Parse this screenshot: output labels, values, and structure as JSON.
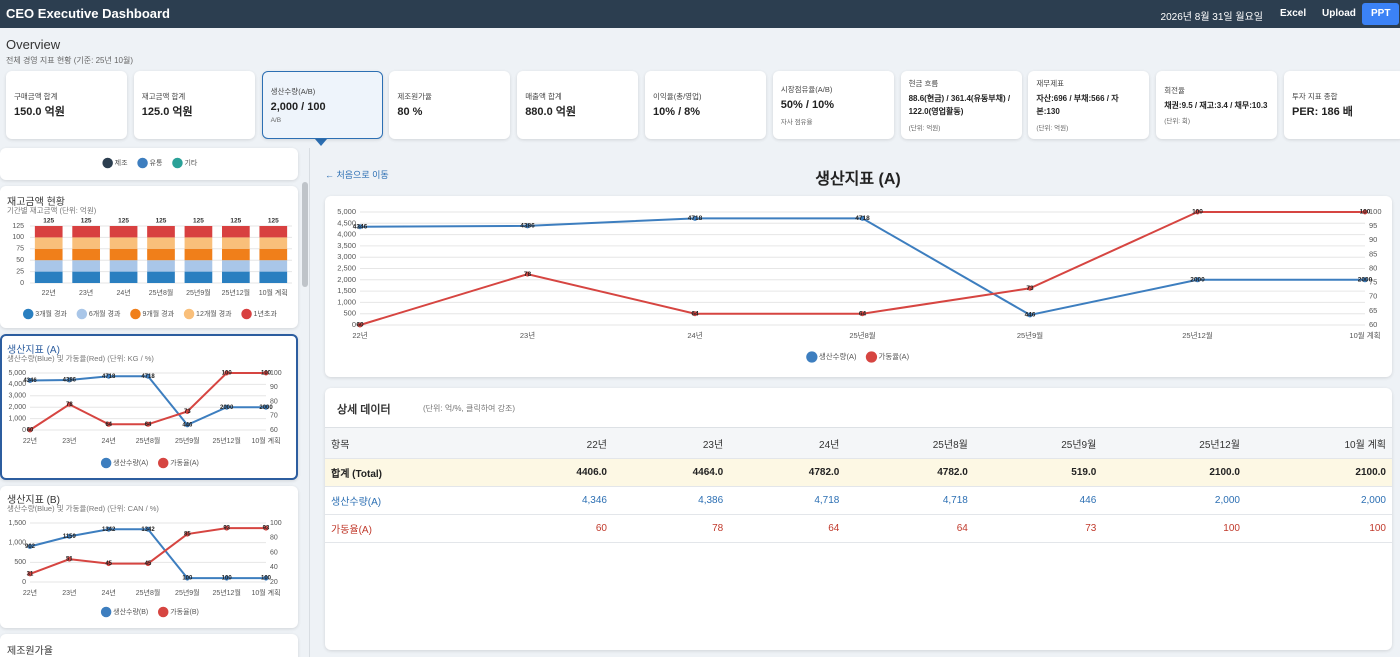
{
  "header": {
    "title": "CEO Executive Dashboard",
    "date": "2026년 8월 31일 월요일",
    "buttons": [
      "Excel",
      "Upload",
      "PPT"
    ]
  },
  "overview": {
    "title": "Overview",
    "subtitle": "전체 경영 지표 현황 (기준: 25년 10월)"
  },
  "kpi_cards": [
    {
      "label": "구매금액 합계",
      "value": "150.0 억원"
    },
    {
      "label": "재고금액 합계",
      "value": "125.0 억원"
    },
    {
      "label": "생산수량(A/B)",
      "value": "2,000 / 100",
      "note": "A/B"
    },
    {
      "label": "제조원가율",
      "value": "80 %"
    },
    {
      "label": "매출액 합계",
      "value": "880.0 억원"
    },
    {
      "label": "이익율(총/영업)",
      "value": "10% / 8%"
    },
    {
      "label": "시장점유율(A/B)",
      "value": "50% / 10%",
      "note": "자사 점유율"
    },
    {
      "label": "현금 흐름",
      "value": "88.6(현금) / 361.4(유동부채) / 122.0(영업활동)",
      "note": "(단위: 억원)"
    },
    {
      "label": "재무제표",
      "value": "자산:696 / 부채:566 / 자본:130",
      "note": "(단위: 억원)"
    },
    {
      "label": "회전율",
      "value": "채권:9.5 / 재고:3.4 / 채무:10.3",
      "note": "(단위: 회)"
    },
    {
      "label": "투자 지표 종합",
      "value": "PER: 186 배"
    }
  ],
  "top_legend": [
    {
      "name": "제조",
      "color": "#2c3e50"
    },
    {
      "name": "유통",
      "color": "#3d7ebf"
    },
    {
      "name": "기타",
      "color": "#2aa198"
    }
  ],
  "chart_data": [
    {
      "type": "stacked_bar",
      "title": "재고금액 현황",
      "subtitle": "기간별 재고금액 (단위: 억원)",
      "categories": [
        "22년",
        "23년",
        "24년",
        "25년8월",
        "25년9월",
        "25년12월",
        "10월 계획"
      ],
      "series": [
        {
          "name": "3개월 경과",
          "color": "#2a7fc0",
          "values": [
            25,
            25,
            25,
            25,
            25,
            25,
            25
          ]
        },
        {
          "name": "6개월 경과",
          "color": "#a9c6e8",
          "values": [
            25,
            25,
            25,
            25,
            25,
            25,
            25
          ]
        },
        {
          "name": "9개월 경과",
          "color": "#f07f1a",
          "values": [
            25,
            25,
            25,
            25,
            25,
            25,
            25
          ]
        },
        {
          "name": "12개월 경과",
          "color": "#f9bf7a",
          "values": [
            25,
            25,
            25,
            25,
            25,
            25,
            25
          ]
        },
        {
          "name": "1년초과",
          "color": "#d84040",
          "values": [
            25,
            25,
            25,
            25,
            25,
            25,
            25
          ]
        }
      ],
      "total_labels": [
        125,
        125,
        125,
        125,
        125,
        125,
        125
      ],
      "ylim": [
        0,
        125
      ],
      "yticks": [
        0,
        25,
        50,
        75,
        100,
        125
      ]
    },
    {
      "type": "line",
      "title": "생산지표 (A)",
      "subtitle": "생산수량(Blue) 및 가동율(Red) (단위: KG / %)",
      "categories": [
        "22년",
        "23년",
        "24년",
        "25년8월",
        "25년9월",
        "25년12월",
        "10월 계획"
      ],
      "series": [
        {
          "name": "생산수량(A)",
          "color": "#3d7ebf",
          "values": [
            4346,
            4386,
            4718,
            4718,
            446,
            2000,
            2000
          ]
        },
        {
          "name": "가동율(A)",
          "color": "#d64541",
          "axis": "y2",
          "values": [
            60,
            78,
            64,
            64,
            73,
            100,
            100
          ]
        }
      ],
      "ylim": [
        0,
        5000
      ],
      "yticks": [
        0,
        {
          "value": 1000,
          "label": "1,000"
        },
        {
          "value": 2000,
          "label": "2,000"
        },
        {
          "value": 3000,
          "label": "3,000"
        },
        {
          "value": 4000,
          "label": "4,000"
        },
        {
          "value": 5000,
          "label": "5,000"
        }
      ],
      "y2lim": [
        60,
        100
      ],
      "y2ticks": [
        60,
        70,
        80,
        90,
        100
      ]
    },
    {
      "type": "line",
      "title": "생산지표 (B)",
      "subtitle": "생산수량(Blue) 및 가동율(Red) (단위: CAN / %)",
      "categories": [
        "22년",
        "23년",
        "24년",
        "25년8월",
        "25년9월",
        "25년12월",
        "10월 계획"
      ],
      "series": [
        {
          "name": "생산수량(B)",
          "color": "#3d7ebf",
          "values": [
            902,
            1159,
            1342,
            1342,
            100,
            100,
            100
          ]
        },
        {
          "name": "가동율(B)",
          "color": "#d64541",
          "axis": "y2",
          "values": [
            31,
            51,
            45,
            45,
            85,
            93,
            93
          ]
        }
      ],
      "ylim": [
        0,
        1500
      ],
      "yticks": [
        0,
        500,
        {
          "value": 1000,
          "label": "1,000"
        },
        {
          "value": 1500,
          "label": "1,500"
        }
      ],
      "y2lim": [
        20,
        100
      ],
      "y2ticks": [
        20,
        40,
        60,
        80,
        100
      ]
    },
    {
      "type": "line",
      "title": "생산지표 (A)",
      "categories": [
        "22년",
        "23년",
        "24년",
        "25년8월",
        "25년9월",
        "25년12월",
        "10월 계획"
      ],
      "series": [
        {
          "name": "생산수량(A)",
          "color": "#3d7ebf",
          "values": [
            4346,
            4386,
            4718,
            4718,
            446,
            2000,
            2000
          ]
        },
        {
          "name": "가동율(A)",
          "color": "#d64541",
          "axis": "y2",
          "values": [
            60,
            78,
            64,
            64,
            73,
            100,
            100
          ]
        }
      ],
      "ylim": [
        0,
        5000
      ],
      "yticks": [
        0,
        500,
        {
          "value": 1000,
          "label": "1,000"
        },
        {
          "value": 1500,
          "label": "1,500"
        },
        {
          "value": 2000,
          "label": "2,000"
        },
        {
          "value": 2500,
          "label": "2,500"
        },
        {
          "value": 3000,
          "label": "3,000"
        },
        {
          "value": 3500,
          "label": "3,500"
        },
        {
          "value": 4000,
          "label": "4,000"
        },
        {
          "value": 4500,
          "label": "4,500"
        },
        {
          "value": 5000,
          "label": "5,000"
        }
      ],
      "y2lim": [
        60,
        100
      ],
      "y2ticks": [
        60,
        65,
        70,
        75,
        80,
        85,
        90,
        95,
        100
      ]
    }
  ],
  "side_card_title": "제조원가율",
  "main": {
    "back_link": "← 처음으로 이동"
  },
  "detail": {
    "title": "상세 데이터",
    "note": "(단위: 억/%, 클릭하여 강조)",
    "columns": [
      "항목",
      "22년",
      "23년",
      "24년",
      "25년8월",
      "25년9월",
      "25년12월",
      "10월 계획"
    ],
    "rows": [
      [
        "합계 (Total)",
        "4406.0",
        "4464.0",
        "4782.0",
        "4782.0",
        "519.0",
        "2100.0",
        "2100.0"
      ],
      [
        "생산수량(A)",
        "4,346",
        "4,386",
        "4,718",
        "4,718",
        "446",
        "2,000",
        "2,000"
      ],
      [
        "가동율(A)",
        "60",
        "78",
        "64",
        "64",
        "73",
        "100",
        "100"
      ]
    ]
  }
}
